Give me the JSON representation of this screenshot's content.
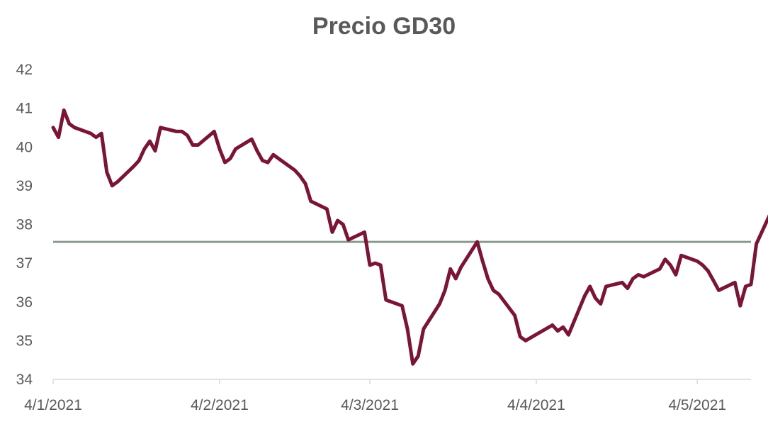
{
  "chart_data": {
    "type": "line",
    "title": "Precio GD30",
    "xlabel": "",
    "ylabel": "",
    "ylim": [
      34,
      42
    ],
    "yticks": [
      34,
      35,
      36,
      37,
      38,
      39,
      40,
      41,
      42
    ],
    "xlim": [
      "2021-01-04",
      "2021-05-14"
    ],
    "xticks": [
      {
        "date": "2021-01-04",
        "label": "4/1/2021"
      },
      {
        "date": "2021-02-04",
        "label": "4/2/2021"
      },
      {
        "date": "2021-03-04",
        "label": "4/3/2021"
      },
      {
        "date": "2021-04-04",
        "label": "4/4/2021"
      },
      {
        "date": "2021-05-04",
        "label": "4/5/2021"
      }
    ],
    "grid": false,
    "reference_line": {
      "y": 37.55,
      "color": "#8a9a8e"
    },
    "series": [
      {
        "color": "#7a1535",
        "points": [
          [
            "2021-01-04",
            40.5
          ],
          [
            "2021-01-05",
            40.25
          ],
          [
            "2021-01-06",
            40.95
          ],
          [
            "2021-01-07",
            40.6
          ],
          [
            "2021-01-08",
            40.5
          ],
          [
            "2021-01-11",
            40.35
          ],
          [
            "2021-01-12",
            40.25
          ],
          [
            "2021-01-13",
            40.35
          ],
          [
            "2021-01-14",
            39.35
          ],
          [
            "2021-01-15",
            39.0
          ],
          [
            "2021-01-16",
            39.1
          ],
          [
            "2021-01-19",
            39.5
          ],
          [
            "2021-01-20",
            39.65
          ],
          [
            "2021-01-21",
            39.95
          ],
          [
            "2021-01-22",
            40.15
          ],
          [
            "2021-01-23",
            39.9
          ],
          [
            "2021-01-24",
            40.5
          ],
          [
            "2021-01-27",
            40.4
          ],
          [
            "2021-01-28",
            40.4
          ],
          [
            "2021-01-29",
            40.3
          ],
          [
            "2021-01-30",
            40.05
          ],
          [
            "2021-01-31",
            40.05
          ],
          [
            "2021-02-03",
            40.4
          ],
          [
            "2021-02-04",
            39.95
          ],
          [
            "2021-02-05",
            39.6
          ],
          [
            "2021-02-06",
            39.7
          ],
          [
            "2021-02-07",
            39.95
          ],
          [
            "2021-02-10",
            40.2
          ],
          [
            "2021-02-11",
            39.9
          ],
          [
            "2021-02-12",
            39.65
          ],
          [
            "2021-02-13",
            39.6
          ],
          [
            "2021-02-14",
            39.8
          ],
          [
            "2021-02-18",
            39.4
          ],
          [
            "2021-02-19",
            39.25
          ],
          [
            "2021-02-20",
            39.05
          ],
          [
            "2021-02-21",
            38.6
          ],
          [
            "2021-02-24",
            38.4
          ],
          [
            "2021-02-25",
            37.8
          ],
          [
            "2021-02-26",
            38.1
          ],
          [
            "2021-02-27",
            38.0
          ],
          [
            "2021-02-28",
            37.6
          ],
          [
            "2021-03-03",
            37.8
          ],
          [
            "2021-03-04",
            36.95
          ],
          [
            "2021-03-05",
            37.0
          ],
          [
            "2021-03-06",
            36.95
          ],
          [
            "2021-03-07",
            36.05
          ],
          [
            "2021-03-10",
            35.9
          ],
          [
            "2021-03-11",
            35.3
          ],
          [
            "2021-03-12",
            34.4
          ],
          [
            "2021-03-13",
            34.6
          ],
          [
            "2021-03-14",
            35.3
          ],
          [
            "2021-03-17",
            35.95
          ],
          [
            "2021-03-18",
            36.3
          ],
          [
            "2021-03-19",
            36.85
          ],
          [
            "2021-03-20",
            36.6
          ],
          [
            "2021-03-21",
            36.9
          ],
          [
            "2021-03-24",
            37.55
          ],
          [
            "2021-03-25",
            37.05
          ],
          [
            "2021-03-26",
            36.6
          ],
          [
            "2021-03-27",
            36.3
          ],
          [
            "2021-03-28",
            36.2
          ],
          [
            "2021-03-31",
            35.65
          ],
          [
            "2021-04-01",
            35.1
          ],
          [
            "2021-04-02",
            35.0
          ],
          [
            "2021-04-07",
            35.4
          ],
          [
            "2021-04-08",
            35.25
          ],
          [
            "2021-04-09",
            35.35
          ],
          [
            "2021-04-10",
            35.15
          ],
          [
            "2021-04-13",
            36.15
          ],
          [
            "2021-04-14",
            36.4
          ],
          [
            "2021-04-15",
            36.1
          ],
          [
            "2021-04-16",
            35.95
          ],
          [
            "2021-04-17",
            36.4
          ],
          [
            "2021-04-20",
            36.5
          ],
          [
            "2021-04-21",
            36.35
          ],
          [
            "2021-04-22",
            36.6
          ],
          [
            "2021-04-23",
            36.7
          ],
          [
            "2021-04-24",
            36.65
          ],
          [
            "2021-04-27",
            36.85
          ],
          [
            "2021-04-28",
            37.1
          ],
          [
            "2021-04-29",
            36.95
          ],
          [
            "2021-04-30",
            36.7
          ],
          [
            "2021-05-01",
            37.2
          ],
          [
            "2021-05-04",
            37.05
          ],
          [
            "2021-05-05",
            36.95
          ],
          [
            "2021-05-06",
            36.8
          ],
          [
            "2021-05-07",
            36.55
          ],
          [
            "2021-05-08",
            36.3
          ],
          [
            "2021-05-11",
            36.5
          ],
          [
            "2021-05-12",
            35.9
          ],
          [
            "2021-05-13",
            36.4
          ],
          [
            "2021-05-14",
            36.45
          ],
          [
            "2021-05-15",
            37.5
          ],
          [
            "2021-05-18",
            38.4
          ],
          [
            "2021-05-19",
            38.4
          ]
        ]
      }
    ]
  }
}
